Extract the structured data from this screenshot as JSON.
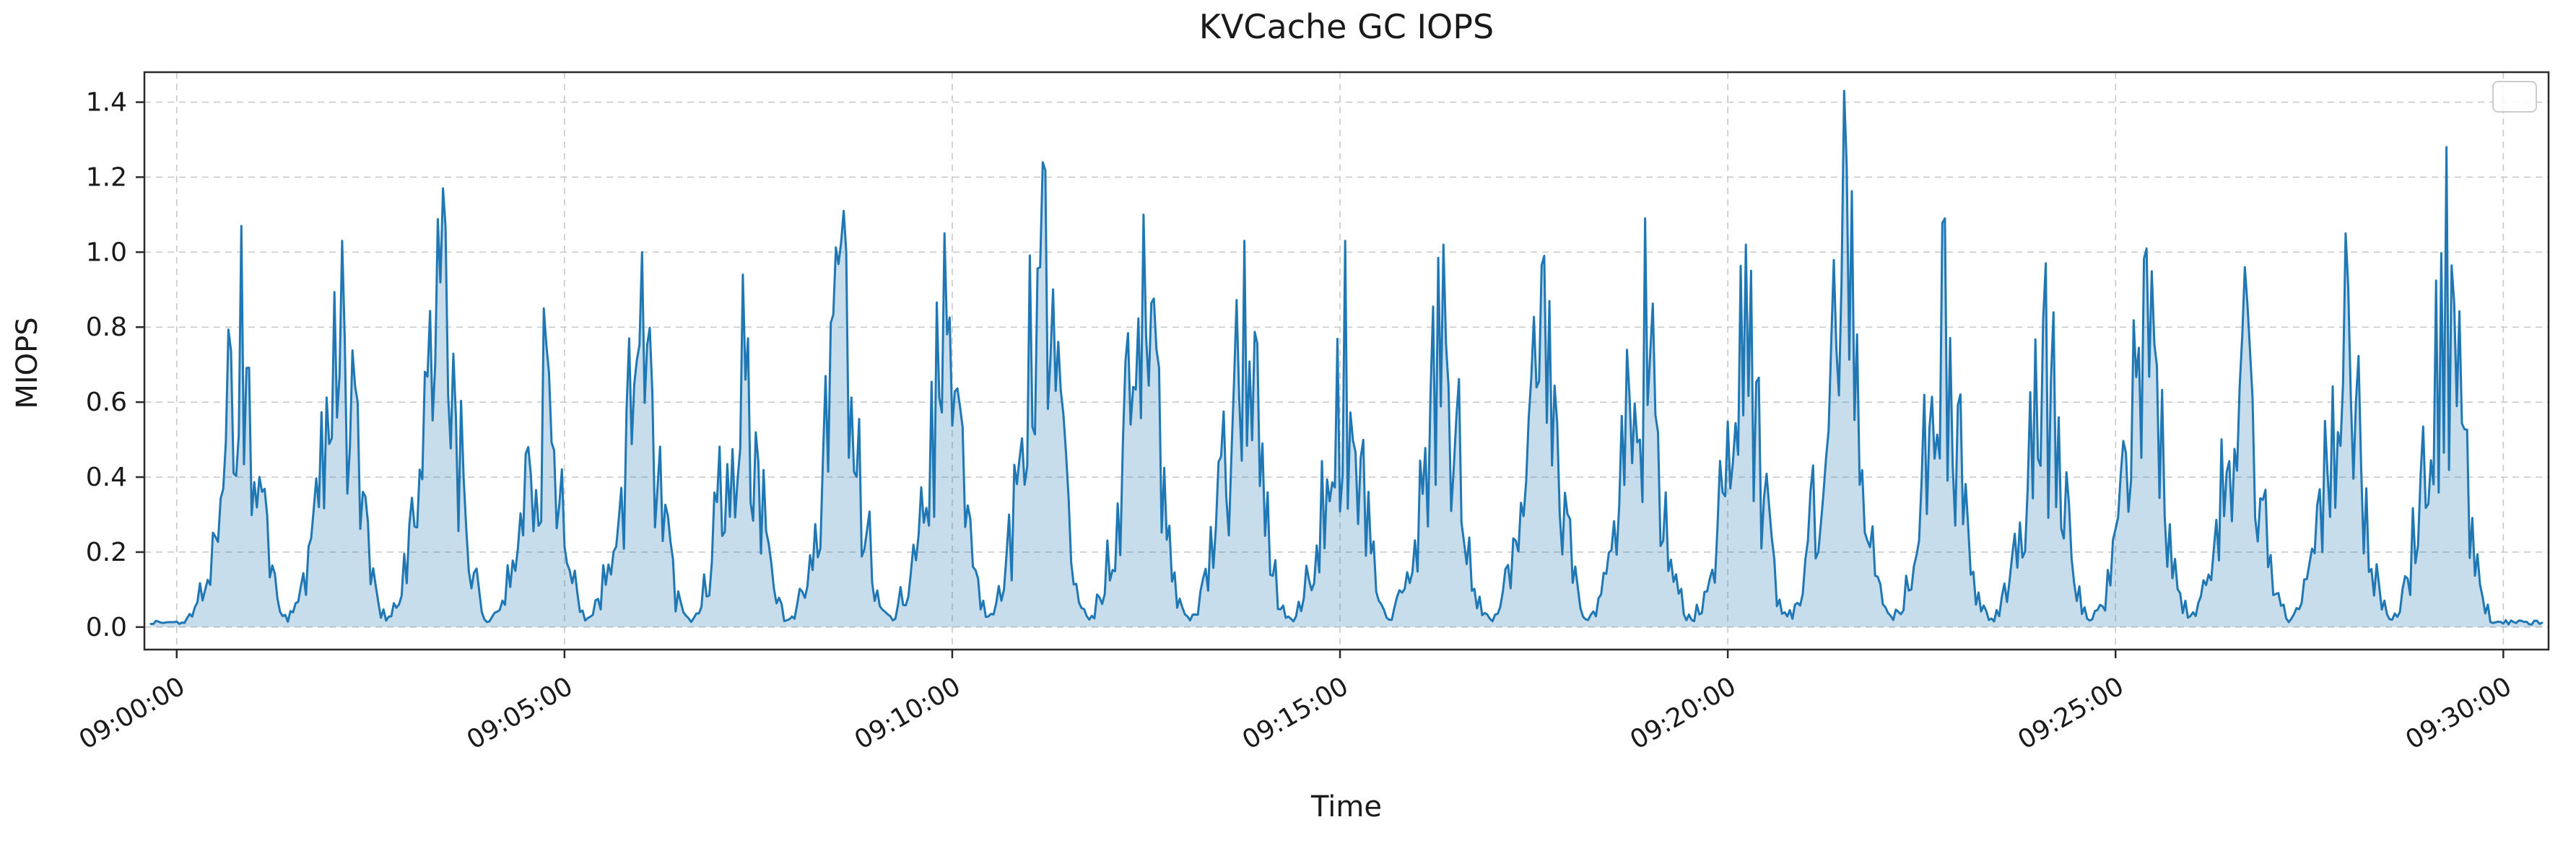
{
  "chart_data": {
    "type": "area",
    "title": "KVCache GC IOPS",
    "xlabel": "Time",
    "ylabel": "MIOPS",
    "grid": true,
    "legend_position": "upper right",
    "legend_entries": [],
    "x_tick_labels": [
      "09:00:00",
      "09:05:00",
      "09:10:00",
      "09:15:00",
      "09:20:00",
      "09:25:00",
      "09:30:00"
    ],
    "x_tick_seconds": [
      0,
      300,
      600,
      900,
      1200,
      1500,
      1800
    ],
    "y_ticks": [
      "0.0",
      "0.2",
      "0.4",
      "0.6",
      "0.8",
      "1.0",
      "1.2",
      "1.4"
    ],
    "y_tick_values": [
      0.0,
      0.2,
      0.4,
      0.6,
      0.8,
      1.0,
      1.2,
      1.4
    ],
    "ylim": [
      -0.06,
      1.48
    ],
    "xlim_seconds": [
      -25,
      1835
    ],
    "baseline_miops": 0.01,
    "burst_period_seconds": 78,
    "burst_width_seconds": 60,
    "bursts": [
      {
        "time": "09:00:50",
        "t_seconds": 50,
        "peak_miops": 1.07
      },
      {
        "time": "09:02:08",
        "t_seconds": 128,
        "peak_miops": 1.03
      },
      {
        "time": "09:03:26",
        "t_seconds": 206,
        "peak_miops": 1.17
      },
      {
        "time": "09:04:44",
        "t_seconds": 284,
        "peak_miops": 0.85
      },
      {
        "time": "09:06:00",
        "t_seconds": 360,
        "peak_miops": 1.0
      },
      {
        "time": "09:07:18",
        "t_seconds": 438,
        "peak_miops": 0.94
      },
      {
        "time": "09:08:36",
        "t_seconds": 516,
        "peak_miops": 1.11
      },
      {
        "time": "09:09:54",
        "t_seconds": 594,
        "peak_miops": 1.05
      },
      {
        "time": "09:11:10",
        "t_seconds": 670,
        "peak_miops": 1.24
      },
      {
        "time": "09:12:28",
        "t_seconds": 748,
        "peak_miops": 1.1
      },
      {
        "time": "09:13:46",
        "t_seconds": 826,
        "peak_miops": 1.03
      },
      {
        "time": "09:15:04",
        "t_seconds": 904,
        "peak_miops": 1.03
      },
      {
        "time": "09:16:20",
        "t_seconds": 980,
        "peak_miops": 1.02
      },
      {
        "time": "09:17:38",
        "t_seconds": 1058,
        "peak_miops": 0.99
      },
      {
        "time": "09:18:56",
        "t_seconds": 1136,
        "peak_miops": 1.09
      },
      {
        "time": "09:20:14",
        "t_seconds": 1214,
        "peak_miops": 1.02
      },
      {
        "time": "09:21:30",
        "t_seconds": 1290,
        "peak_miops": 1.43
      },
      {
        "time": "09:22:48",
        "t_seconds": 1368,
        "peak_miops": 1.09
      },
      {
        "time": "09:24:06",
        "t_seconds": 1446,
        "peak_miops": 0.97
      },
      {
        "time": "09:25:24",
        "t_seconds": 1524,
        "peak_miops": 1.01
      },
      {
        "time": "09:26:40",
        "t_seconds": 1600,
        "peak_miops": 0.96
      },
      {
        "time": "09:27:58",
        "t_seconds": 1678,
        "peak_miops": 1.05
      },
      {
        "time": "09:29:16",
        "t_seconds": 1756,
        "peak_miops": 1.28
      }
    ],
    "colors": {
      "line": "#1f77b4",
      "fill": "#1f77b4",
      "fill_opacity": 0.25,
      "grid": "#c9c9c9",
      "frame": "#2b2b2b",
      "tick_text": "#1a1a1a",
      "background": "#ffffff"
    }
  }
}
